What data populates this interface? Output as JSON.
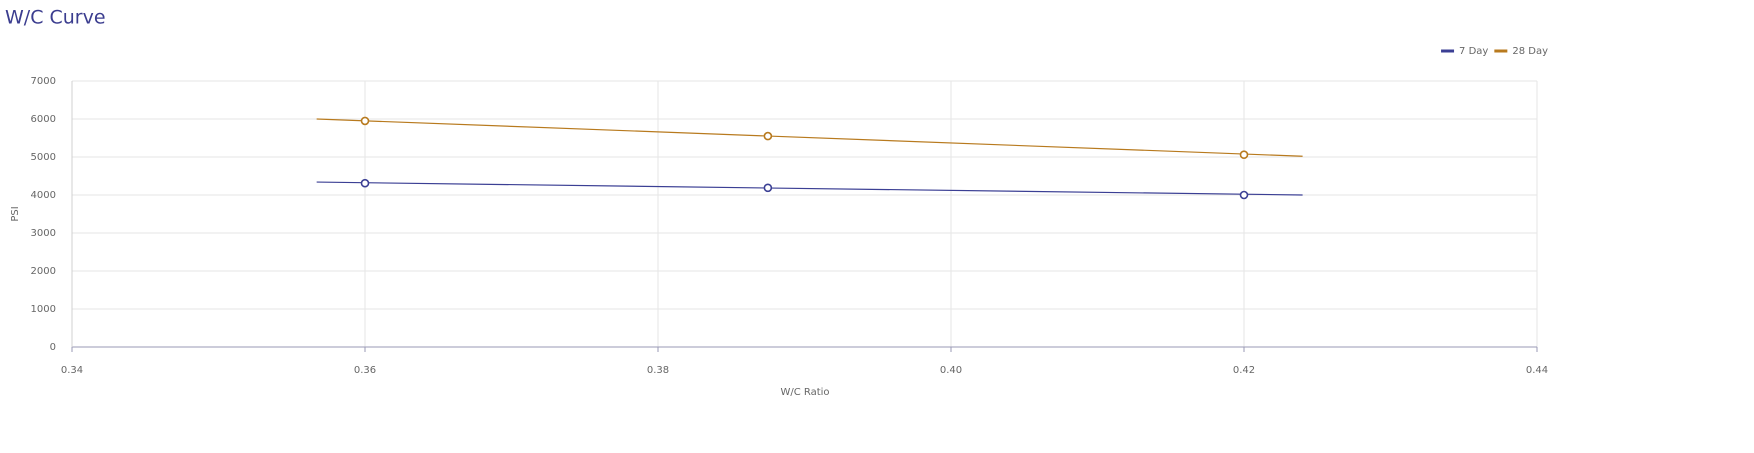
{
  "chart_data": {
    "type": "line",
    "title": "W/C Curve",
    "xlabel": "W/C Ratio",
    "ylabel": "PSI",
    "xlim": [
      0.34,
      0.44
    ],
    "xticks": [
      0.34,
      0.36,
      0.38,
      {
        "value": 0.4,
        "label": "0.40"
      },
      0.42,
      0.44
    ],
    "ylim": [
      0,
      7000
    ],
    "yticks": [
      0,
      1000,
      2000,
      3000,
      4000,
      5000,
      6000,
      7000
    ],
    "grid": true,
    "legend": "top-right",
    "series": [
      {
        "name": "7 Day",
        "color": "#3b3f94",
        "x": [
          0.36,
          0.3875,
          0.42
        ],
        "values": [
          4310,
          4190,
          4000
        ],
        "trend": {
          "x": [
            0.3567,
            0.424
          ],
          "values": [
            4340,
            4000
          ]
        }
      },
      {
        "name": "28 Day",
        "color": "#b87a1e",
        "x": [
          0.36,
          0.3875,
          0.42
        ],
        "values": [
          5950,
          5550,
          5060
        ],
        "trend": {
          "x": [
            0.3567,
            0.424
          ],
          "values": [
            6000,
            5020
          ]
        }
      }
    ]
  }
}
